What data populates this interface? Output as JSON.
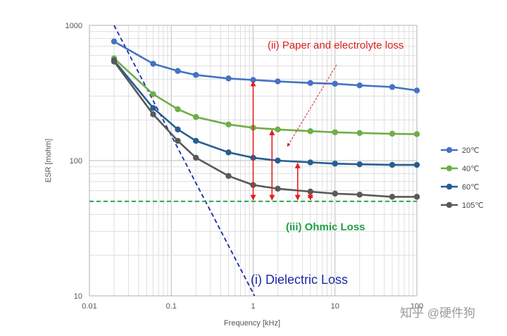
{
  "chart_data": {
    "type": "line",
    "xlabel": "Frequency [kHz]",
    "ylabel": "ESR [mohm]",
    "x_scale": "log",
    "y_scale": "log",
    "xlim": [
      0.01,
      100
    ],
    "ylim": [
      10,
      1000
    ],
    "x_ticks": [
      "0.01",
      "0.1",
      "1",
      "10",
      "100"
    ],
    "y_ticks": [
      "10",
      "100",
      "1000"
    ],
    "grid": true,
    "legend_position": "right",
    "x": [
      0.02,
      0.06,
      0.12,
      0.2,
      0.5,
      1,
      2,
      5,
      10,
      20,
      50,
      100
    ],
    "series": [
      {
        "name": "20℃",
        "color": "#4472c4",
        "values": [
          760,
          520,
          460,
          430,
          405,
          395,
          385,
          375,
          370,
          360,
          350,
          330
        ]
      },
      {
        "name": "40℃",
        "color": "#70ad47",
        "values": [
          570,
          310,
          240,
          210,
          185,
          175,
          170,
          165,
          162,
          160,
          158,
          157
        ]
      },
      {
        "name": "60℃",
        "color": "#255e91",
        "values": [
          550,
          245,
          170,
          140,
          115,
          105,
          100,
          97,
          95,
          94,
          93,
          93
        ]
      },
      {
        "name": "105℃",
        "color": "#595959",
        "values": [
          540,
          220,
          140,
          105,
          77,
          66,
          62,
          59,
          57,
          56,
          54,
          54
        ]
      }
    ],
    "reference_lines": [
      {
        "name": "Dielectric Loss",
        "label": "(i) Dielectric Loss",
        "color": "#1a2aa8",
        "points": [
          [
            0.02,
            1000
          ],
          [
            1.04,
            10
          ]
        ]
      },
      {
        "name": "Ohmic Loss",
        "label": "(iii) Ohmic Loss",
        "color": "#1fa048",
        "y": 50
      }
    ],
    "annotations": [
      {
        "text": "(ii) Paper and electrolyte loss",
        "color": "#e0201f"
      }
    ],
    "arrows": [
      {
        "x": 1,
        "from": 50,
        "to": 395
      },
      {
        "x": 1.7,
        "from": 50,
        "to": 172
      },
      {
        "x": 3.5,
        "from": 50,
        "to": 98
      },
      {
        "x": 5,
        "from": 50,
        "to": 59
      }
    ]
  },
  "watermark": "知乎 @硬件狗"
}
